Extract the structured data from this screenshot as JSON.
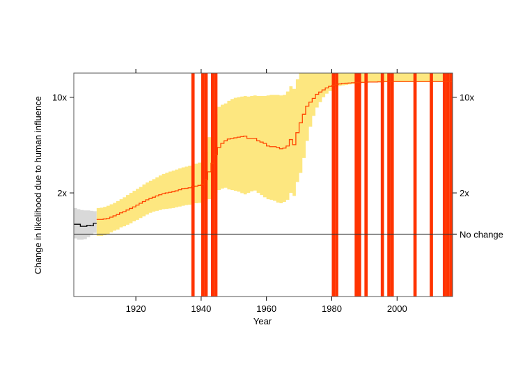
{
  "chart_data": {
    "type": "line",
    "title": "",
    "xlabel": "Year",
    "ylabel": "Change in likelihood due to human influence",
    "xlim": [
      1901,
      2017
    ],
    "y_scale": "log",
    "ylim": [
      0.35,
      15
    ],
    "x_ticks": [
      1920,
      1940,
      1960,
      1980,
      2000
    ],
    "x_tick_labels": [
      "1920",
      "1940",
      "1960",
      "1980",
      "2000"
    ],
    "y_ticks_left": [
      {
        "value": 10,
        "label": "10x"
      },
      {
        "value": 2,
        "label": "2x"
      }
    ],
    "y_ticks_right": [
      {
        "value": 10,
        "label": "10x"
      },
      {
        "value": 2,
        "label": "2x"
      },
      {
        "value": 1,
        "label": "No change"
      }
    ],
    "reference_line": 1,
    "grid": false,
    "colors": {
      "early_band": "#d9d9d9",
      "early_line": "#000000",
      "band": "#fde780",
      "line": "#ff4400",
      "record_bars": "#ff3300",
      "axis": "#555555"
    },
    "early_series": {
      "x": [
        1901,
        1902,
        1903,
        1904,
        1905,
        1906,
        1907,
        1908
      ],
      "median": [
        1.18,
        1.18,
        1.14,
        1.14,
        1.16,
        1.15,
        1.2,
        1.2
      ],
      "lower": [
        0.93,
        0.91,
        0.91,
        0.92,
        0.95,
        0.98,
        1.02,
        1.02
      ],
      "upper": [
        1.55,
        1.52,
        1.5,
        1.49,
        1.49,
        1.48,
        1.47,
        1.47
      ]
    },
    "series": [
      {
        "x": [
          1908,
          1909,
          1910,
          1911,
          1912,
          1913,
          1914,
          1915,
          1916,
          1917,
          1918,
          1919,
          1920,
          1921,
          1922,
          1923,
          1924,
          1925,
          1926,
          1927,
          1928,
          1929,
          1930,
          1931,
          1932,
          1933,
          1934,
          1935,
          1936,
          1937,
          1938,
          1939,
          1940,
          1941,
          1942,
          1943,
          1944,
          1945,
          1946,
          1947,
          1948,
          1949,
          1950,
          1951,
          1952,
          1953,
          1954,
          1955,
          1956,
          1957,
          1958,
          1959,
          1960,
          1961,
          1962,
          1963,
          1964,
          1965,
          1966,
          1967,
          1968,
          1969,
          1970,
          1971,
          1972,
          1973,
          1974,
          1975,
          1976,
          1977,
          1978,
          1979,
          1980,
          1981,
          1982,
          1983,
          1984,
          1985,
          1986,
          1987,
          1988,
          1989,
          1990,
          1991,
          1992,
          1993,
          1994,
          1995,
          1996,
          1997,
          1998,
          1999,
          2000,
          2001,
          2002,
          2003,
          2004,
          2005,
          2006,
          2007,
          2008,
          2009,
          2010,
          2011,
          2012,
          2013,
          2014,
          2015,
          2016,
          2017
        ],
        "median": [
          1.28,
          1.28,
          1.29,
          1.3,
          1.33,
          1.36,
          1.39,
          1.43,
          1.46,
          1.5,
          1.54,
          1.58,
          1.63,
          1.68,
          1.73,
          1.78,
          1.82,
          1.86,
          1.9,
          1.94,
          1.97,
          2.0,
          2.02,
          2.04,
          2.07,
          2.11,
          2.15,
          2.16,
          2.18,
          2.22,
          2.24,
          2.27,
          2.3,
          2.5,
          2.85,
          3.3,
          3.8,
          4.3,
          4.6,
          4.8,
          4.95,
          5.0,
          5.05,
          5.1,
          5.15,
          5.2,
          5.0,
          5.0,
          5.0,
          4.8,
          4.7,
          4.6,
          4.4,
          4.35,
          4.35,
          4.3,
          4.2,
          4.25,
          4.4,
          4.9,
          4.5,
          5.5,
          6.5,
          7.5,
          8.6,
          9.2,
          9.8,
          10.5,
          10.9,
          11.3,
          11.7,
          12.0,
          12.2,
          12.4,
          12.5,
          12.6,
          12.65,
          12.7,
          12.75,
          12.8,
          12.8,
          12.85,
          12.85,
          12.9,
          12.9,
          12.9,
          12.95,
          12.95,
          13.0,
          13.0,
          13.0,
          13.0,
          13.0,
          13.0,
          13.0,
          13.0,
          13.0,
          13.0,
          13.0,
          13.0,
          13.0,
          13.0,
          13.0,
          13.0,
          13.0,
          13.0,
          13.0,
          13.0,
          13.0,
          13.0
        ],
        "lower": [
          0.97,
          0.97,
          0.98,
          1.0,
          1.03,
          1.06,
          1.08,
          1.12,
          1.14,
          1.17,
          1.2,
          1.24,
          1.27,
          1.31,
          1.35,
          1.39,
          1.43,
          1.46,
          1.48,
          1.5,
          1.52,
          1.53,
          1.54,
          1.55,
          1.57,
          1.59,
          1.61,
          1.63,
          1.64,
          1.67,
          1.68,
          1.69,
          1.7,
          1.75,
          1.8,
          1.9,
          2.0,
          2.1,
          2.15,
          2.18,
          2.12,
          2.1,
          2.07,
          2.04,
          1.99,
          1.95,
          2.0,
          2.05,
          2.08,
          2.0,
          1.93,
          1.86,
          1.8,
          1.78,
          1.75,
          1.7,
          1.68,
          1.72,
          1.78,
          2.0,
          1.9,
          2.4,
          2.8,
          3.6,
          4.8,
          6.1,
          7.3,
          8.4,
          9.2,
          10.0,
          10.6,
          11.1,
          11.6,
          11.9,
          12.1,
          12.2,
          12.3,
          12.4,
          12.5,
          12.6,
          12.6,
          12.7,
          12.7,
          12.8,
          12.8,
          12.8,
          12.85,
          12.85,
          12.9,
          12.9,
          12.9,
          12.9,
          12.9,
          12.9,
          12.9,
          12.9,
          12.9,
          12.9,
          12.9,
          12.9,
          12.9,
          12.9,
          12.9,
          12.9,
          12.9,
          12.9,
          12.9,
          12.9,
          12.9,
          12.9
        ],
        "upper": [
          1.55,
          1.56,
          1.58,
          1.61,
          1.65,
          1.69,
          1.74,
          1.8,
          1.86,
          1.93,
          2.0,
          2.07,
          2.14,
          2.21,
          2.3,
          2.38,
          2.45,
          2.52,
          2.6,
          2.68,
          2.75,
          2.81,
          2.86,
          2.91,
          2.96,
          3.02,
          3.07,
          3.11,
          3.16,
          3.22,
          3.27,
          3.33,
          3.4,
          4.0,
          5.1,
          6.3,
          7.5,
          8.5,
          8.8,
          9.0,
          9.4,
          9.7,
          9.9,
          10.0,
          10.1,
          10.2,
          10.1,
          10.2,
          10.3,
          10.2,
          10.2,
          10.2,
          10.3,
          10.4,
          10.4,
          10.4,
          10.3,
          10.4,
          11.0,
          12.0,
          11.5,
          13.5,
          15,
          15,
          15,
          15,
          15,
          15,
          15,
          15,
          15,
          15,
          15,
          15,
          15,
          15,
          15,
          15,
          15,
          15,
          15,
          15,
          15,
          15,
          15,
          15,
          15,
          15,
          15,
          15,
          15,
          15,
          15,
          15,
          15,
          15,
          15,
          15,
          15,
          15,
          15,
          15,
          15,
          15,
          15,
          15,
          15,
          15,
          15,
          15
        ]
      }
    ],
    "record_years": [
      1937,
      1940,
      1941,
      1943,
      1944,
      1980,
      1981,
      1987,
      1988,
      1990,
      1995,
      1997,
      1998,
      2005,
      2010,
      2014,
      2015,
      2016
    ]
  }
}
